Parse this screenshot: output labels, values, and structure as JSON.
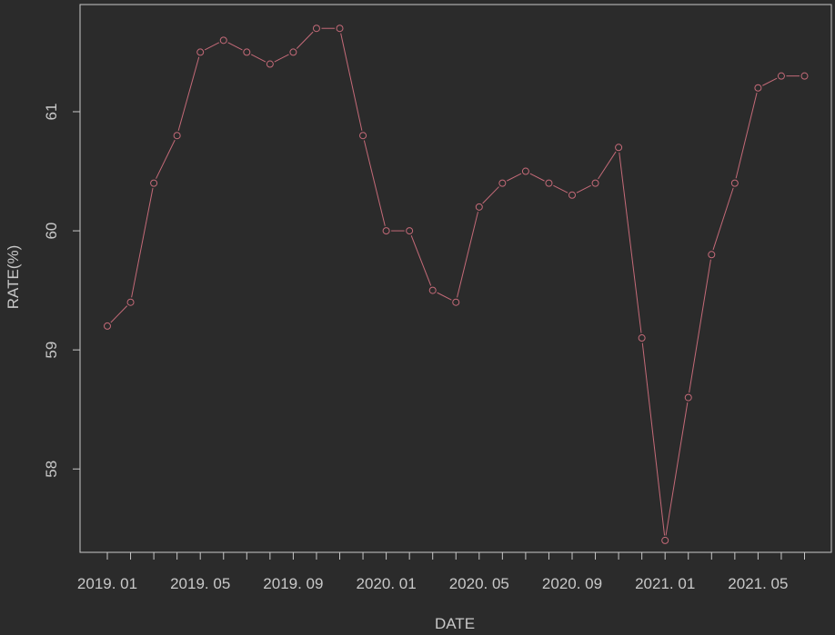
{
  "chart_data": {
    "type": "line",
    "title": "",
    "xlabel": "DATE",
    "ylabel": "RATE(%)",
    "ylim": [
      57.3,
      61.9
    ],
    "yticks": [
      58,
      59,
      60,
      61
    ],
    "ytick_labels": [
      "58",
      "59",
      "60",
      "61"
    ],
    "xtick_labels": [
      "2019. 01",
      "2019. 05",
      "2019. 09",
      "2020. 01",
      "2020. 05",
      "2020. 09",
      "2021. 01",
      "2021. 05"
    ],
    "xtick_indices": [
      0,
      4,
      8,
      12,
      16,
      20,
      24,
      28
    ],
    "x": [
      "2019.01",
      "2019.02",
      "2019.03",
      "2019.04",
      "2019.05",
      "2019.06",
      "2019.07",
      "2019.08",
      "2019.09",
      "2019.10",
      "2019.11",
      "2019.12",
      "2020.01",
      "2020.02",
      "2020.03",
      "2020.04",
      "2020.05",
      "2020.06",
      "2020.07",
      "2020.08",
      "2020.09",
      "2020.10",
      "2020.11",
      "2020.12",
      "2021.01",
      "2021.02",
      "2021.03",
      "2021.04",
      "2021.05",
      "2021.06",
      "2021.07"
    ],
    "series": [
      {
        "name": "",
        "values": [
          59.2,
          59.4,
          60.4,
          60.8,
          61.5,
          61.6,
          61.5,
          61.4,
          61.5,
          61.7,
          61.7,
          60.8,
          60.0,
          60.0,
          59.5,
          59.4,
          60.2,
          60.4,
          60.5,
          60.4,
          60.3,
          60.4,
          60.7,
          59.1,
          57.4,
          58.6,
          59.8,
          60.4,
          61.2,
          61.3,
          61.3
        ]
      }
    ],
    "colors": {
      "background": "#2b2b2b",
      "line": "#c46a78",
      "axis": "#c8c8c8",
      "text": "#c8c8c8"
    },
    "grid": false,
    "legend": "none"
  }
}
